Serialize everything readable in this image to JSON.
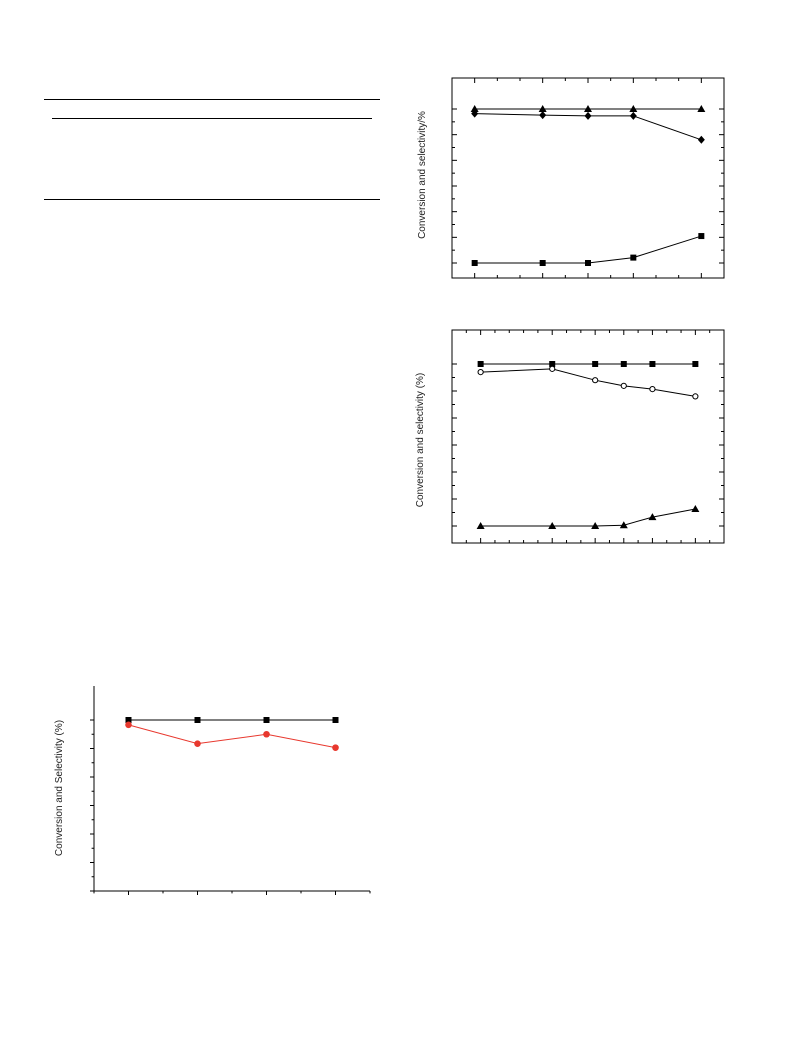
{
  "chart_data": [
    {
      "type": "line",
      "ylabel": "Conversion and selectivity/%",
      "ylim": [
        0,
        100
      ],
      "x": [
        0,
        3,
        5,
        7,
        10
      ],
      "xlim": [
        -1,
        11
      ],
      "series": [
        {
          "marker": "triangle",
          "values": [
            100,
            100,
            100,
            100,
            100
          ]
        },
        {
          "marker": "diamond",
          "values": [
            97,
            96,
            95.5,
            95.5,
            80
          ]
        },
        {
          "marker": "square",
          "values": [
            0,
            0,
            0,
            3.5,
            17.5
          ]
        }
      ]
    },
    {
      "type": "line",
      "ylabel": "Conversion and selectivity (%)",
      "ylim": [
        0,
        100
      ],
      "x": [
        1,
        6,
        9,
        11,
        13,
        16
      ],
      "xlim": [
        -1,
        18
      ],
      "series": [
        {
          "marker": "square",
          "values": [
            100,
            100,
            100,
            100,
            100,
            100
          ]
        },
        {
          "marker": "circle-open",
          "values": [
            95,
            97,
            90,
            86.5,
            84.5,
            80
          ]
        },
        {
          "marker": "triangle",
          "values": [
            0,
            0,
            0,
            0.5,
            5.5,
            10.5
          ]
        }
      ]
    },
    {
      "type": "line",
      "ylabel": "Conversion and Selectivity (%)",
      "ylim": [
        40,
        100
      ],
      "x": [
        1,
        2,
        3,
        4
      ],
      "xlim": [
        0.5,
        4.5
      ],
      "series": [
        {
          "marker": "square",
          "color": "#000000",
          "values": [
            100,
            100,
            100,
            100
          ]
        },
        {
          "marker": "circle",
          "color": "#e8382e",
          "values": [
            98.3,
            91.7,
            95,
            90.3
          ]
        }
      ]
    }
  ]
}
